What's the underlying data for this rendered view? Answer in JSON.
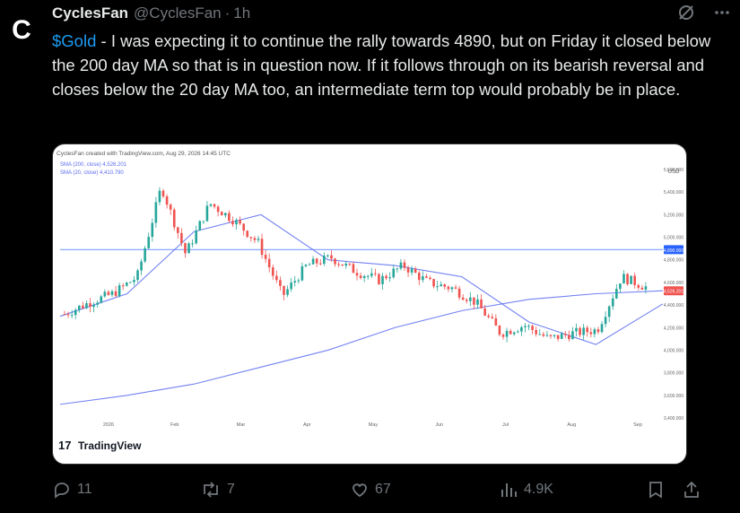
{
  "avatar": {
    "letter": "C"
  },
  "tweet": {
    "name": "CyclesFan",
    "handle": "@CyclesFan",
    "sep": "·",
    "time": "1h",
    "cashtag": "$Gold",
    "text": " - I was expecting it to continue the rally towards 4890, but on Friday it closed below the 200 day MA so that is in question now. If it follows through on its bearish reversal and closes below the 20 day MA too, an intermediate term top would probably be  in place."
  },
  "chart_card": {
    "credit": "CyclesFan created with TradingView.com, Aug 29, 2026 14:45 UTC",
    "legend": [
      "SMA (200, close)  4,526.201",
      "SMA (20, close)  4,410.790"
    ],
    "currency": "USD",
    "brand": "TradingView",
    "colors": {
      "up": "#26a69a",
      "down": "#ef5350",
      "ma": "#5b6cf0",
      "level": "#2962ff"
    }
  },
  "chart_data": {
    "type": "candlestick",
    "x_ticks": [
      "2026",
      "Feb",
      "Mar",
      "Apr",
      "May",
      "Jun",
      "Jul",
      "Aug",
      "Sep"
    ],
    "y_ticks": [
      5600,
      5400,
      5200,
      5000,
      4800,
      4600,
      4400,
      4200,
      4000,
      3800,
      3600,
      3400
    ],
    "ylim": [
      3400,
      5600
    ],
    "price_labels": [
      {
        "value": 4890,
        "label": "4,890.000"
      },
      {
        "value": 4526,
        "label": "4,526.201"
      }
    ],
    "horizontal_level": 4890,
    "series": [
      {
        "name": "SMA (200, close)",
        "values": [
          3520,
          3600,
          3700,
          3850,
          4000,
          4200,
          4350,
          4450,
          4500,
          4526
        ]
      },
      {
        "name": "SMA (20, close)",
        "values": [
          4300,
          4500,
          5050,
          5200,
          4800,
          4750,
          4650,
          4250,
          4050,
          4410
        ]
      }
    ],
    "price_path": [
      4320,
      4420,
      4500,
      4650,
      5450,
      4850,
      5300,
      5150,
      4950,
      4480,
      4750,
      4820,
      4700,
      4620,
      4750,
      4600,
      4550,
      4420,
      4150,
      4220,
      4100,
      4150,
      4180,
      4650,
      4560
    ]
  },
  "actions": {
    "replies": "11",
    "reposts": "7",
    "likes": "67",
    "views": "4.9K"
  }
}
